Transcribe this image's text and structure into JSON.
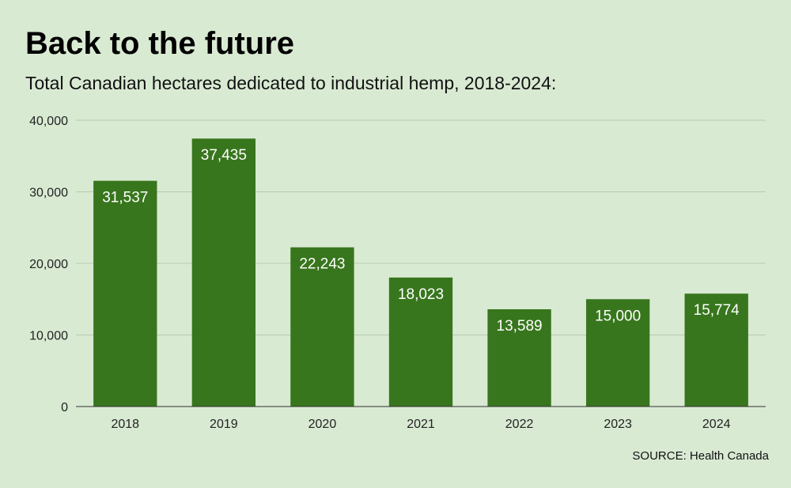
{
  "header": {
    "title": "Back to the future",
    "subtitle": "Total Canadian hectares dedicated to industrial hemp, 2018-2024:"
  },
  "footer": {
    "source": "SOURCE: Health Canada"
  },
  "colors": {
    "background": "#d9ead3",
    "bar": "#38761d",
    "label": "#ffffff"
  },
  "chart_data": {
    "type": "bar",
    "title": "Back to the future",
    "subtitle": "Total Canadian hectares dedicated to industrial hemp, 2018-2024:",
    "categories": [
      "2018",
      "2019",
      "2020",
      "2021",
      "2022",
      "2023",
      "2024"
    ],
    "values": [
      31537,
      37435,
      22243,
      18023,
      13589,
      15000,
      15774
    ],
    "data_labels": [
      "31,537",
      "37,435",
      "22,243",
      "18,023",
      "13,589",
      "15,000",
      "15,774"
    ],
    "ylim": [
      0,
      40000
    ],
    "yticks": [
      0,
      10000,
      20000,
      30000,
      40000
    ],
    "ytick_labels": [
      "0",
      "10,000",
      "20,000",
      "30,000",
      "40,000"
    ],
    "xlabel": "",
    "ylabel": "",
    "grid": true,
    "legend": "none"
  }
}
